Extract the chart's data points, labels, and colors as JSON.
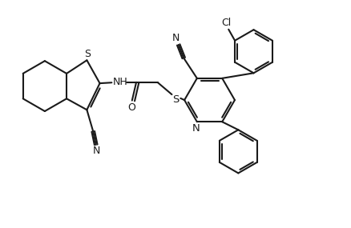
{
  "background_color": "#ffffff",
  "line_color": "#1a1a1a",
  "line_width": 1.5,
  "figsize": [
    4.39,
    2.85
  ],
  "dpi": 100,
  "xlim": [
    0,
    10
  ],
  "ylim": [
    0,
    6.5
  ]
}
